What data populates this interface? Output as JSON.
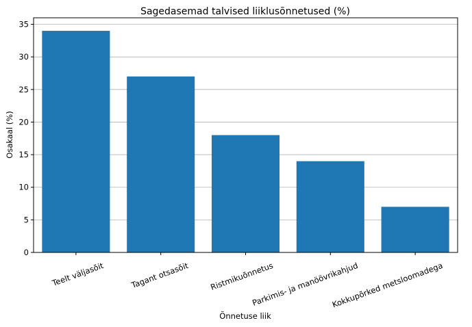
{
  "chart_data": {
    "type": "bar",
    "title": "Sagedasemad talvised liiklusõnnetused (%)",
    "xlabel": "Õnnetuse liik",
    "ylabel": "Osakaal (%)",
    "categories": [
      "Teelt väljasõit",
      "Tagant otsasõit",
      "Ristmikuõnnetus",
      "Parkimis- ja manöövrikahjud",
      "Kokkupõrked metsloomadega"
    ],
    "values": [
      34,
      27,
      18,
      14,
      7
    ],
    "ylim": [
      0,
      36
    ],
    "yticks": [
      0,
      5,
      10,
      15,
      20,
      25,
      30,
      35
    ],
    "grid": "y",
    "bar_color": "#1f77b4"
  }
}
